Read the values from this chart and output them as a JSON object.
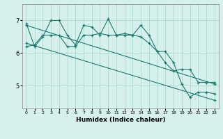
{
  "xlabel": "Humidex (Indice chaleur)",
  "bg_color": "#d6f0eb",
  "grid_color": "#aad8d0",
  "line_color": "#1a7a6e",
  "xlim": [
    -0.5,
    23.5
  ],
  "ylim": [
    4.3,
    7.5
  ],
  "yticks": [
    5,
    6,
    7
  ],
  "xticks": [
    0,
    1,
    2,
    3,
    4,
    5,
    6,
    7,
    8,
    9,
    10,
    11,
    12,
    13,
    14,
    15,
    16,
    17,
    18,
    19,
    20,
    21,
    22,
    23
  ],
  "series1_x": [
    0,
    1,
    2,
    3,
    4,
    5,
    6,
    7,
    8,
    9,
    10,
    11,
    12,
    13,
    14,
    15,
    16,
    17,
    18,
    19,
    20,
    21,
    22,
    23
  ],
  "series1_y": [
    6.9,
    6.2,
    6.5,
    7.0,
    7.0,
    6.55,
    6.25,
    6.85,
    6.8,
    6.55,
    7.05,
    6.55,
    6.6,
    6.55,
    6.85,
    6.55,
    6.05,
    6.05,
    5.7,
    5.05,
    4.65,
    4.8,
    4.8,
    4.75
  ],
  "series2_x": [
    0,
    1,
    2,
    3,
    4,
    5,
    6,
    7,
    8,
    9,
    10,
    11,
    12,
    13,
    14,
    15,
    16,
    17,
    18,
    19,
    20,
    21,
    22,
    23
  ],
  "series2_y": [
    6.2,
    6.25,
    6.55,
    6.55,
    6.55,
    6.2,
    6.2,
    6.55,
    6.55,
    6.6,
    6.55,
    6.55,
    6.55,
    6.55,
    6.5,
    6.3,
    6.05,
    5.7,
    5.45,
    5.5,
    5.5,
    5.1,
    5.1,
    5.1
  ],
  "series3_x": [
    0,
    23
  ],
  "series3_y": [
    6.85,
    5.05
  ],
  "series4_x": [
    0,
    23
  ],
  "series4_y": [
    6.3,
    4.55
  ]
}
